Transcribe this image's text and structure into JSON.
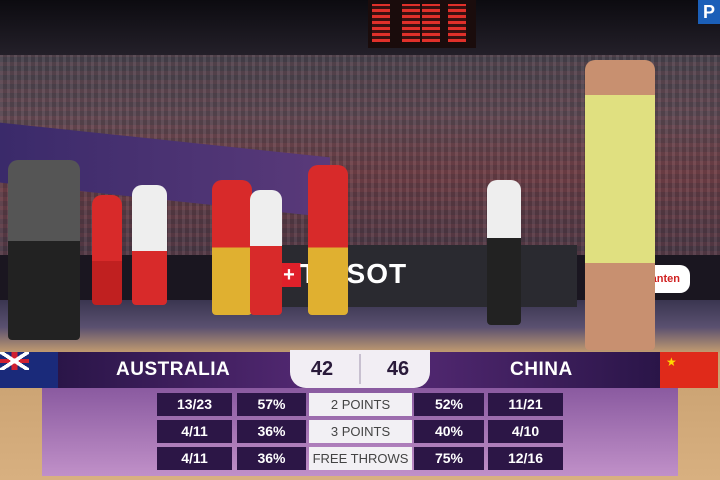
{
  "broadcaster_logo": "P",
  "arena": {
    "banner_text": "TISSOT",
    "sponsor_text": "Ganten"
  },
  "scoreboard": {
    "home": {
      "team": "AUSTRALIA",
      "score": "42",
      "flag": "australia-flag"
    },
    "away": {
      "team": "CHINA",
      "score": "46",
      "flag": "china-flag"
    }
  },
  "stats": [
    {
      "label": "2 POINTS",
      "home_made": "13/23",
      "home_pct": "57%",
      "away_pct": "52%",
      "away_made": "11/21"
    },
    {
      "label": "3 POINTS",
      "home_made": "4/11",
      "home_pct": "36%",
      "away_pct": "40%",
      "away_made": "4/10"
    },
    {
      "label": "FREE THROWS",
      "home_made": "4/11",
      "home_pct": "36%",
      "away_pct": "75%",
      "away_made": "12/16"
    }
  ],
  "colors": {
    "overlay_dark": "#2c1646",
    "overlay_light": "#c090c8",
    "accent_blue": "#1b5fb8"
  }
}
